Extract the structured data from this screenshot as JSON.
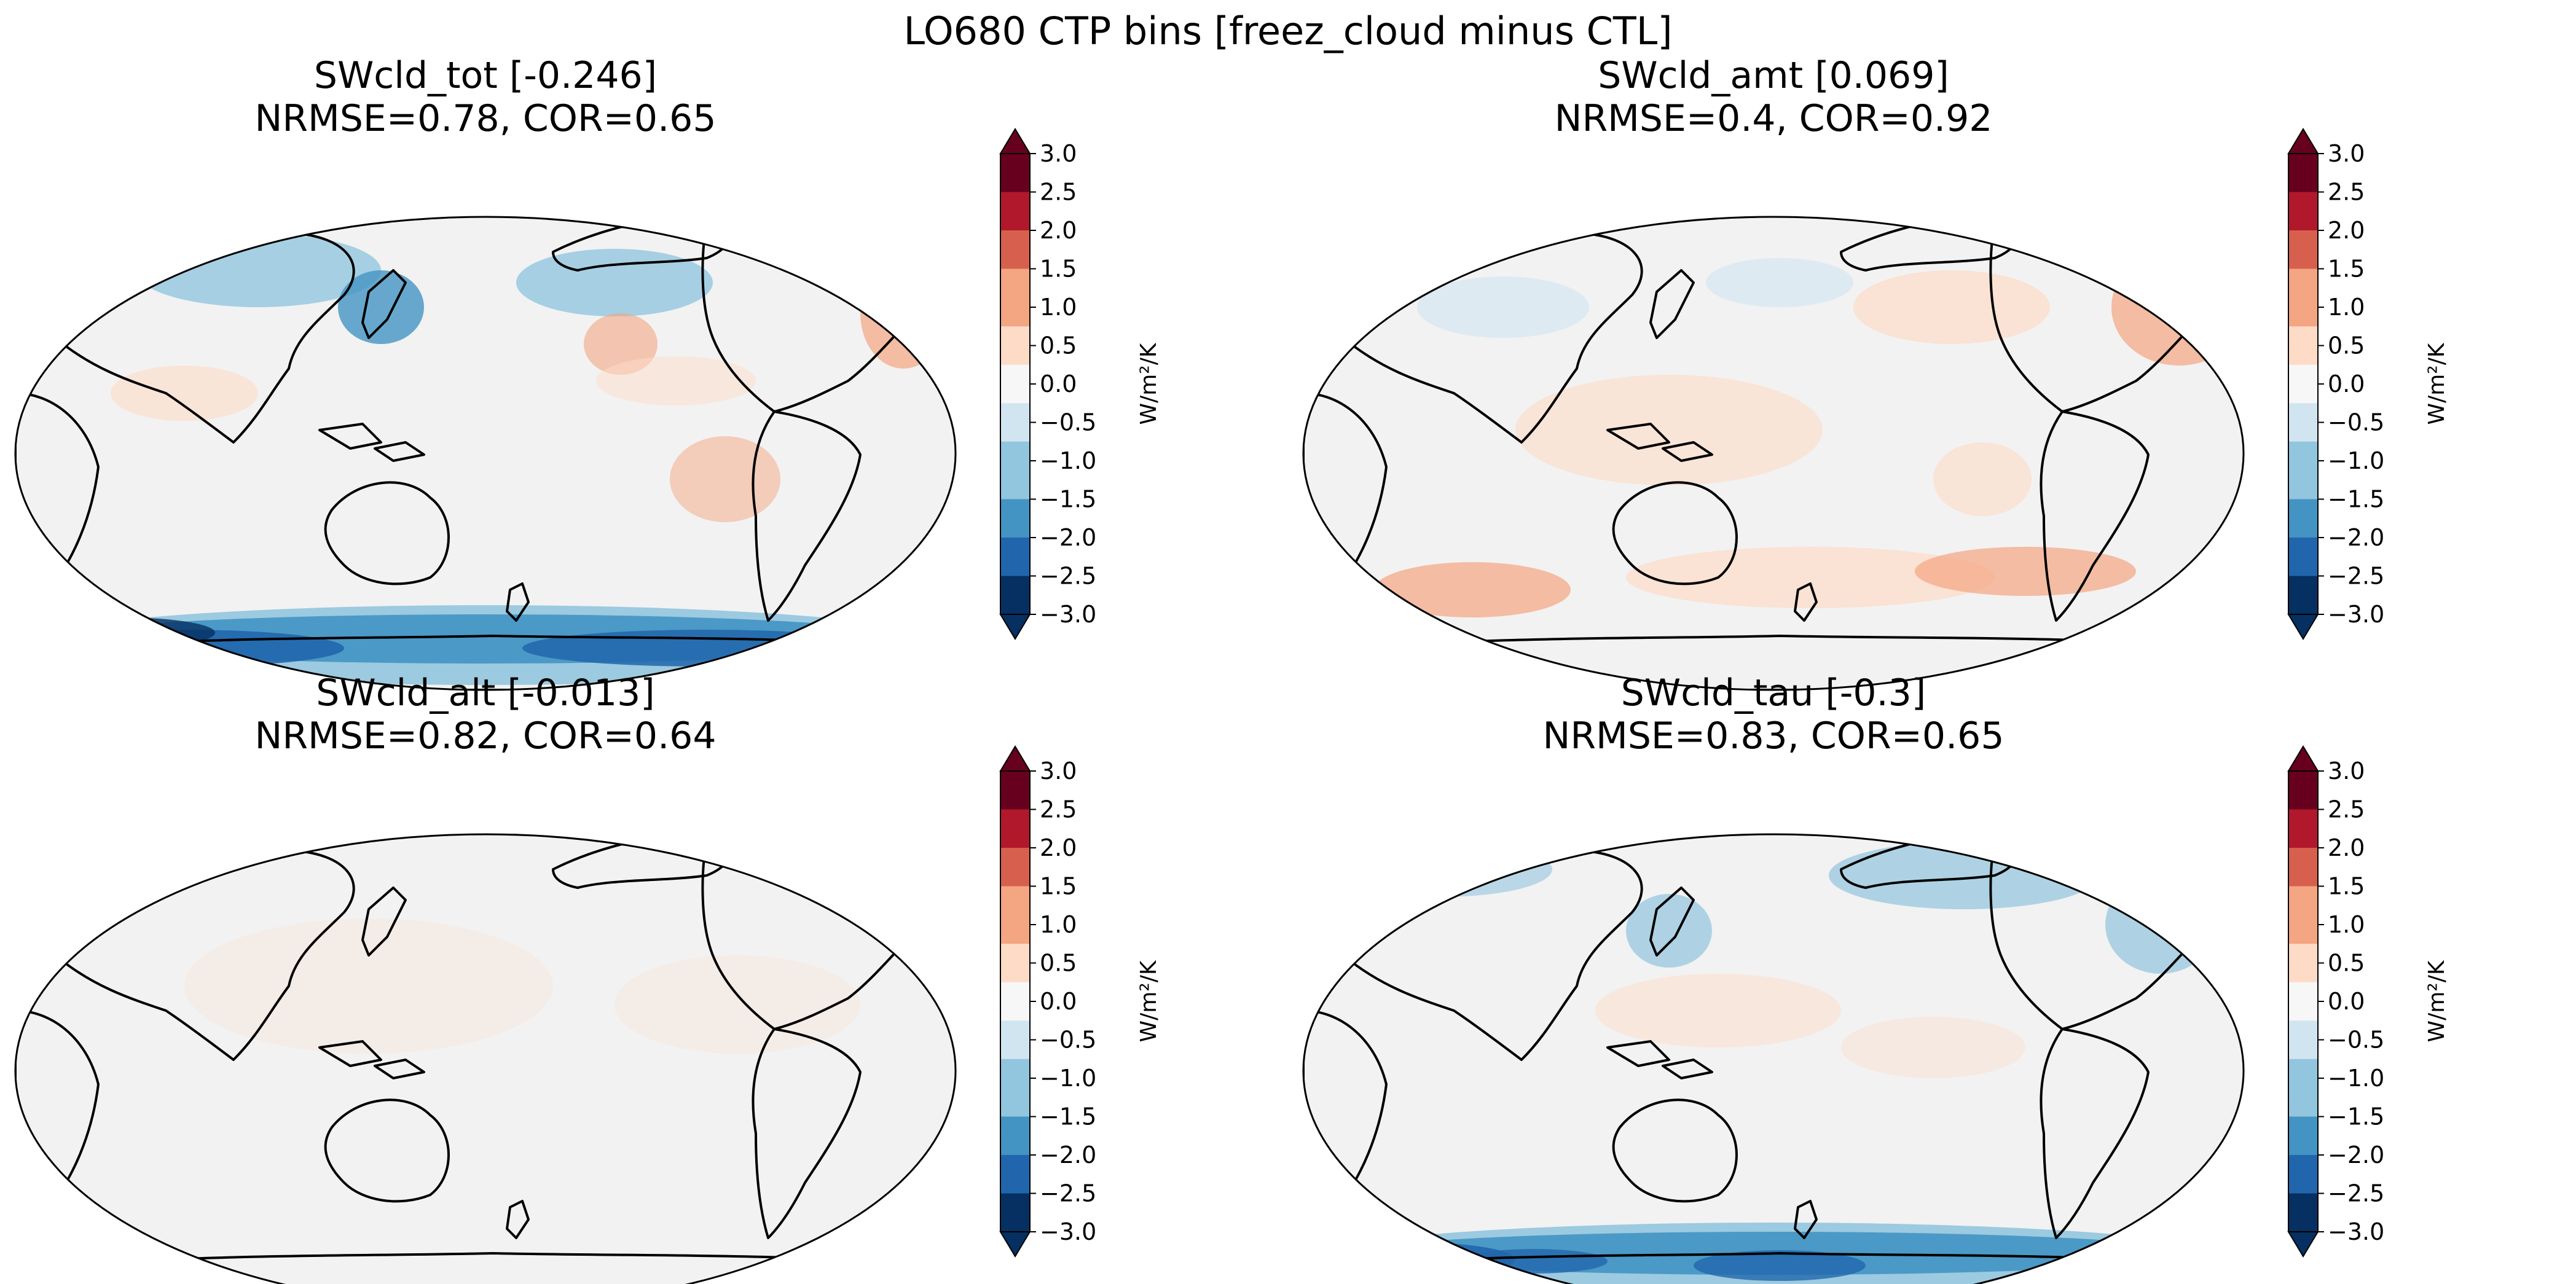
{
  "figure": {
    "title": "LO680 CTP bins [freez_cloud minus CTL]"
  },
  "colorbar": {
    "ticks": [
      "3.0",
      "2.5",
      "2.0",
      "1.5",
      "1.0",
      "0.5",
      "0.0",
      "−0.5",
      "−1.0",
      "−1.5",
      "−2.0",
      "−2.5",
      "−3.0"
    ],
    "levels": [
      3.0,
      2.5,
      2.0,
      1.5,
      1.0,
      0.5,
      0.0,
      -0.5,
      -1.0,
      -1.5,
      -2.0,
      -2.5,
      -3.0
    ],
    "unit_label": "W/m²/K",
    "colors": [
      "#67001f",
      "#b2182b",
      "#d6604d",
      "#f4a582",
      "#fddbc7",
      "#f7f7f7",
      "#d1e5f0",
      "#92c5de",
      "#4393c3",
      "#2166ac",
      "#053061"
    ],
    "extend": "both"
  },
  "chart_data": [
    {
      "type": "heatmap",
      "projection": "Robinson (global map, Pacific-centered)",
      "title": "SWcld_tot [-0.246]",
      "subtitle": "NRMSE=0.78, COR=0.65",
      "variable": "SWcld_tot",
      "global_mean": -0.246,
      "nrmse": 0.78,
      "cor": 0.65,
      "colorbar_range": [
        -3.0,
        3.0
      ],
      "colorbar_label": "W/m²/K",
      "pattern": "strong negative band over Southern Ocean, negative North Pacific, weak positive subtropics"
    },
    {
      "type": "heatmap",
      "projection": "Robinson (global map, Pacific-centered)",
      "title": "SWcld_amt [0.069]",
      "subtitle": "NRMSE=0.4, COR=0.92",
      "variable": "SWcld_amt",
      "global_mean": 0.069,
      "nrmse": 0.4,
      "cor": 0.92,
      "colorbar_range": [
        -3.0,
        3.0
      ],
      "colorbar_label": "W/m²/K",
      "pattern": "weak positive across Southern Hemisphere mid-latitudes and subtropics, mild negative North Pacific"
    },
    {
      "type": "heatmap",
      "projection": "Robinson (global map, Pacific-centered)",
      "title": "SWcld_alt [-0.013]",
      "subtitle": "NRMSE=0.82, COR=0.64",
      "variable": "SWcld_alt",
      "global_mean": -0.013,
      "nrmse": 0.82,
      "cor": 0.64,
      "colorbar_range": [
        -3.0,
        3.0
      ],
      "colorbar_label": "W/m²/K",
      "pattern": "near zero everywhere"
    },
    {
      "type": "heatmap",
      "projection": "Robinson (global map, Pacific-centered)",
      "title": "SWcld_tau [-0.3]",
      "subtitle": "NRMSE=0.83, COR=0.65",
      "variable": "SWcld_tau",
      "global_mean": -0.3,
      "nrmse": 0.83,
      "cor": 0.65,
      "colorbar_range": [
        -3.0,
        3.0
      ],
      "colorbar_label": "W/m²/K",
      "pattern": "strong negative band over Southern Ocean, negative high-latitude North Pacific/Atlantic"
    }
  ]
}
